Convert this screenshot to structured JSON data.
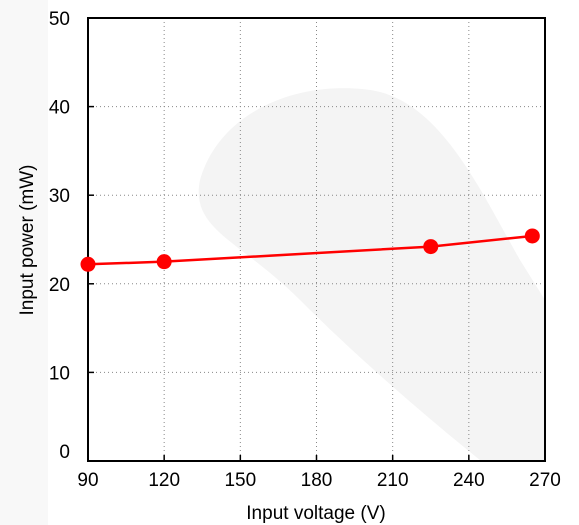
{
  "chart_data": {
    "type": "line",
    "xlabel": "Input voltage (V)",
    "ylabel": "Input power (mW)",
    "xlim": [
      90,
      270
    ],
    "ylim": [
      0,
      50
    ],
    "xticks": [
      "90",
      "120",
      "150",
      "180",
      "210",
      "240",
      "270"
    ],
    "yticks": [
      "0",
      "10",
      "20",
      "30",
      "40",
      "50"
    ],
    "grid": true,
    "series": [
      {
        "color": "#ff0000",
        "points": [
          {
            "x": 90,
            "y": 22.2
          },
          {
            "x": 120,
            "y": 22.5
          },
          {
            "x": 225,
            "y": 24.2
          },
          {
            "x": 265,
            "y": 25.4
          }
        ]
      }
    ]
  }
}
